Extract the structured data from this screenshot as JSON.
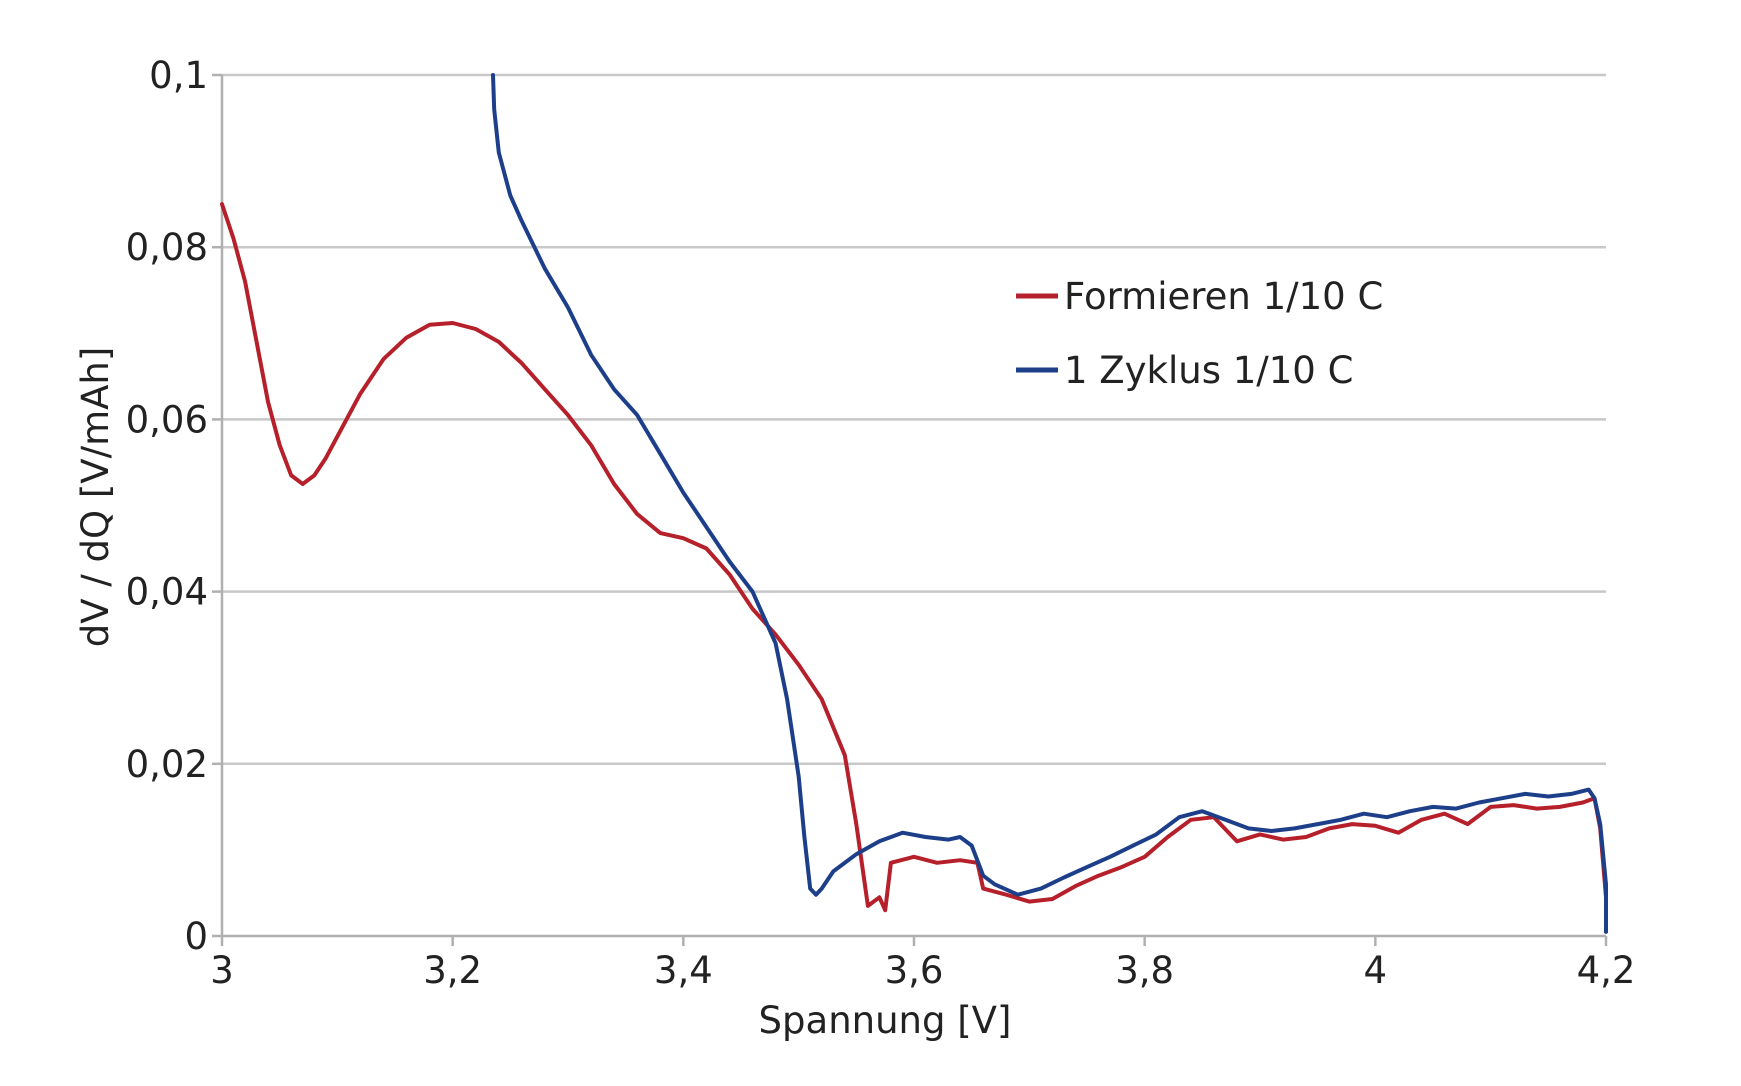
{
  "chart_data": {
    "type": "line",
    "title": "",
    "xlabel": "Spannung [V]",
    "ylabel": "dV / dQ [V/mAh]",
    "xlim": [
      3,
      4.2
    ],
    "ylim": [
      0,
      0.1
    ],
    "x_ticks": [
      {
        "value": 3,
        "label": "3"
      },
      {
        "value": 3.2,
        "label": "3,2"
      },
      {
        "value": 3.4,
        "label": "3,4"
      },
      {
        "value": 3.6,
        "label": "3,6"
      },
      {
        "value": 3.8,
        "label": "3,8"
      },
      {
        "value": 4,
        "label": "4"
      },
      {
        "value": 4.2,
        "label": "4,2"
      }
    ],
    "y_ticks": [
      {
        "value": 0,
        "label": "0"
      },
      {
        "value": 0.02,
        "label": "0,02"
      },
      {
        "value": 0.04,
        "label": "0,04"
      },
      {
        "value": 0.06,
        "label": "0,06"
      },
      {
        "value": 0.08,
        "label": "0,08"
      },
      {
        "value": 0.1,
        "label": "0,1"
      }
    ],
    "grid": "horizontal",
    "legend_position": "upper-right",
    "series": [
      {
        "name": "Formieren 1/10 C",
        "color": "#b5202a",
        "points": [
          [
            3.0,
            0.085
          ],
          [
            3.01,
            0.081
          ],
          [
            3.02,
            0.076
          ],
          [
            3.03,
            0.069
          ],
          [
            3.04,
            0.062
          ],
          [
            3.05,
            0.057
          ],
          [
            3.06,
            0.0535
          ],
          [
            3.07,
            0.0525
          ],
          [
            3.08,
            0.0535
          ],
          [
            3.09,
            0.0555
          ],
          [
            3.1,
            0.058
          ],
          [
            3.12,
            0.063
          ],
          [
            3.14,
            0.067
          ],
          [
            3.16,
            0.0695
          ],
          [
            3.18,
            0.071
          ],
          [
            3.2,
            0.0712
          ],
          [
            3.22,
            0.0705
          ],
          [
            3.24,
            0.069
          ],
          [
            3.26,
            0.0665
          ],
          [
            3.28,
            0.0635
          ],
          [
            3.3,
            0.0605
          ],
          [
            3.32,
            0.057
          ],
          [
            3.34,
            0.0525
          ],
          [
            3.36,
            0.049
          ],
          [
            3.38,
            0.0468
          ],
          [
            3.4,
            0.0462
          ],
          [
            3.42,
            0.045
          ],
          [
            3.44,
            0.042
          ],
          [
            3.46,
            0.038
          ],
          [
            3.48,
            0.035
          ],
          [
            3.5,
            0.0315
          ],
          [
            3.52,
            0.0275
          ],
          [
            3.54,
            0.021
          ],
          [
            3.55,
            0.013
          ],
          [
            3.56,
            0.0035
          ],
          [
            3.57,
            0.0045
          ],
          [
            3.575,
            0.003
          ],
          [
            3.58,
            0.0085
          ],
          [
            3.6,
            0.0092
          ],
          [
            3.62,
            0.0085
          ],
          [
            3.64,
            0.0088
          ],
          [
            3.655,
            0.0085
          ],
          [
            3.66,
            0.0055
          ],
          [
            3.68,
            0.0048
          ],
          [
            3.7,
            0.004
          ],
          [
            3.72,
            0.0043
          ],
          [
            3.74,
            0.0058
          ],
          [
            3.76,
            0.007
          ],
          [
            3.78,
            0.008
          ],
          [
            3.8,
            0.0092
          ],
          [
            3.82,
            0.0115
          ],
          [
            3.84,
            0.0135
          ],
          [
            3.86,
            0.0138
          ],
          [
            3.88,
            0.011
          ],
          [
            3.9,
            0.0118
          ],
          [
            3.92,
            0.0112
          ],
          [
            3.94,
            0.0115
          ],
          [
            3.96,
            0.0125
          ],
          [
            3.98,
            0.013
          ],
          [
            4.0,
            0.0128
          ],
          [
            4.02,
            0.012
          ],
          [
            4.04,
            0.0135
          ],
          [
            4.06,
            0.0142
          ],
          [
            4.08,
            0.013
          ],
          [
            4.1,
            0.015
          ],
          [
            4.12,
            0.0152
          ],
          [
            4.14,
            0.0148
          ],
          [
            4.16,
            0.015
          ],
          [
            4.18,
            0.0155
          ],
          [
            4.19,
            0.016
          ],
          [
            4.195,
            0.0125
          ],
          [
            4.2,
            0.0045
          ],
          [
            4.2,
            0.0005
          ]
        ]
      },
      {
        "name": "1 Zyklus 1/10 C",
        "color": "#1d3f8a",
        "points": [
          [
            3.235,
            0.1
          ],
          [
            3.236,
            0.096
          ],
          [
            3.24,
            0.091
          ],
          [
            3.25,
            0.086
          ],
          [
            3.26,
            0.083
          ],
          [
            3.28,
            0.0775
          ],
          [
            3.3,
            0.073
          ],
          [
            3.32,
            0.0675
          ],
          [
            3.34,
            0.0635
          ],
          [
            3.36,
            0.0605
          ],
          [
            3.38,
            0.056
          ],
          [
            3.4,
            0.0515
          ],
          [
            3.42,
            0.0475
          ],
          [
            3.44,
            0.0435
          ],
          [
            3.46,
            0.04
          ],
          [
            3.48,
            0.034
          ],
          [
            3.49,
            0.0275
          ],
          [
            3.5,
            0.0185
          ],
          [
            3.505,
            0.0115
          ],
          [
            3.51,
            0.0055
          ],
          [
            3.515,
            0.0048
          ],
          [
            3.52,
            0.0055
          ],
          [
            3.53,
            0.0075
          ],
          [
            3.55,
            0.0095
          ],
          [
            3.57,
            0.011
          ],
          [
            3.59,
            0.012
          ],
          [
            3.61,
            0.0115
          ],
          [
            3.63,
            0.0112
          ],
          [
            3.64,
            0.0115
          ],
          [
            3.65,
            0.0105
          ],
          [
            3.66,
            0.007
          ],
          [
            3.67,
            0.006
          ],
          [
            3.69,
            0.0048
          ],
          [
            3.71,
            0.0055
          ],
          [
            3.73,
            0.0068
          ],
          [
            3.75,
            0.008
          ],
          [
            3.77,
            0.0092
          ],
          [
            3.79,
            0.0105
          ],
          [
            3.81,
            0.0118
          ],
          [
            3.83,
            0.0138
          ],
          [
            3.85,
            0.0145
          ],
          [
            3.87,
            0.0135
          ],
          [
            3.89,
            0.0125
          ],
          [
            3.91,
            0.0122
          ],
          [
            3.93,
            0.0125
          ],
          [
            3.95,
            0.013
          ],
          [
            3.97,
            0.0135
          ],
          [
            3.99,
            0.0142
          ],
          [
            4.01,
            0.0138
          ],
          [
            4.03,
            0.0145
          ],
          [
            4.05,
            0.015
          ],
          [
            4.07,
            0.0148
          ],
          [
            4.09,
            0.0155
          ],
          [
            4.11,
            0.016
          ],
          [
            4.13,
            0.0165
          ],
          [
            4.15,
            0.0162
          ],
          [
            4.17,
            0.0165
          ],
          [
            4.185,
            0.017
          ],
          [
            4.19,
            0.016
          ],
          [
            4.195,
            0.013
          ],
          [
            4.2,
            0.006
          ],
          [
            4.2,
            0.0005
          ]
        ]
      }
    ]
  }
}
